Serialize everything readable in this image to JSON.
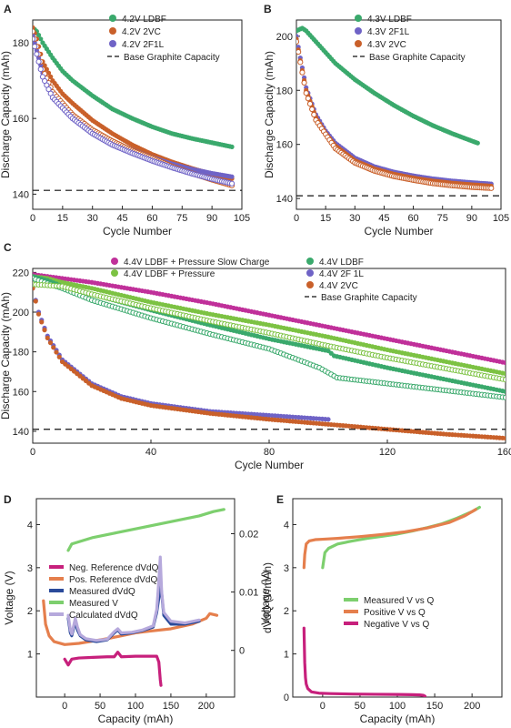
{
  "colors": {
    "green": "#3aa96c",
    "purple": "#6f63c6",
    "orange": "#c9602a",
    "magenta": "#c0309a",
    "lime": "#7cc243",
    "navy": "#2a4a9a",
    "light_green": "#7dcf6e",
    "pos_orange": "#e57f4d",
    "neg_magenta": "#c7207c",
    "lavender": "#b6a9dc"
  },
  "chart_data": [
    {
      "panel": "A",
      "type": "scatter",
      "ylabel": "Discharge Capacity (mAh)",
      "xlabel": "Cycle Number",
      "xlim": [
        0,
        105
      ],
      "ylim": [
        136,
        186
      ],
      "xticks": [
        "0",
        "15",
        "30",
        "45",
        "60",
        "75",
        "90",
        "105"
      ],
      "yticks": [
        "140",
        "160",
        "180"
      ],
      "legend_position": "top-right",
      "series": [
        {
          "name": "4.2V LDBF",
          "color": "#3aa96c",
          "style": "filled",
          "x": [
            0,
            2,
            5,
            10,
            15,
            20,
            30,
            40,
            50,
            60,
            70,
            80,
            90,
            100
          ],
          "y": [
            184,
            183,
            180,
            176,
            172.5,
            170,
            166,
            162.5,
            160,
            157.8,
            156,
            154.7,
            153.6,
            152.5
          ]
        },
        {
          "name": "4.2V 2VC",
          "color": "#c9602a",
          "style": "filled",
          "x": [
            0,
            2,
            5,
            10,
            15,
            20,
            30,
            40,
            50,
            60,
            70,
            80,
            90,
            100
          ],
          "y": [
            184,
            181,
            175,
            170,
            166.5,
            164,
            159.5,
            156,
            153,
            150.5,
            148.5,
            146.8,
            145.3,
            144.1
          ]
        },
        {
          "name": "4.2V 2F1L",
          "color": "#6f63c6",
          "style": "filled",
          "x": [
            0,
            2,
            5,
            10,
            15,
            20,
            30,
            40,
            50,
            60,
            70,
            80,
            90,
            100
          ],
          "y": [
            182,
            178,
            172,
            167,
            163.5,
            161,
            157,
            154,
            151.7,
            149.7,
            148,
            146.6,
            145.5,
            144.6
          ]
        },
        {
          "name": "4.2V 2VC (open)",
          "color": "#c9602a",
          "style": "open",
          "x": [
            0,
            5,
            10,
            20,
            30,
            40,
            50,
            60,
            70,
            80,
            90,
            100
          ],
          "y": [
            183,
            173,
            167,
            161,
            157,
            154,
            151.5,
            149.5,
            147.3,
            145.5,
            143.8,
            142.3
          ]
        },
        {
          "name": "4.2V 2F1L (open)",
          "color": "#6f63c6",
          "style": "open",
          "x": [
            0,
            5,
            10,
            20,
            30,
            40,
            50,
            60,
            70,
            80,
            90,
            100
          ],
          "y": [
            181,
            171,
            165.5,
            160,
            156,
            153,
            150.8,
            148.8,
            147,
            145.4,
            144,
            142.8
          ]
        },
        {
          "name": "Base Graphite Capacity",
          "type": "hline",
          "y": 141
        }
      ]
    },
    {
      "panel": "B",
      "type": "scatter",
      "ylabel": "Discharge Capacity (mAh)",
      "xlabel": "Cycle Number",
      "xlim": [
        0,
        105
      ],
      "ylim": [
        136,
        206
      ],
      "xticks": [
        "0",
        "15",
        "30",
        "45",
        "60",
        "75",
        "90",
        "105"
      ],
      "yticks": [
        "140",
        "160",
        "180",
        "200"
      ],
      "legend_position": "top-right",
      "series": [
        {
          "name": "4.3V LDBF",
          "color": "#3aa96c",
          "style": "filled",
          "x": [
            0,
            3,
            5,
            10,
            15,
            20,
            30,
            40,
            50,
            60,
            70,
            80,
            90,
            93
          ],
          "y": [
            202,
            203,
            202,
            198,
            194,
            190,
            184,
            179,
            174.5,
            170.5,
            167,
            164,
            161.3,
            160.5
          ]
        },
        {
          "name": "4.3V 2F1L",
          "color": "#6f63c6",
          "style": "filled",
          "x": [
            0,
            2,
            5,
            10,
            15,
            20,
            30,
            40,
            50,
            60,
            70,
            80,
            90,
            100
          ],
          "y": [
            200,
            192,
            181,
            171,
            165,
            160.5,
            155,
            151.8,
            149.8,
            148.4,
            147.3,
            146.5,
            145.9,
            145.4
          ]
        },
        {
          "name": "4.3V 2VC",
          "color": "#c9602a",
          "style": "filled",
          "x": [
            0,
            2,
            5,
            10,
            15,
            20,
            30,
            40,
            50,
            60,
            70,
            80,
            90,
            100
          ],
          "y": [
            199,
            191,
            180,
            170,
            164,
            159.5,
            154,
            151,
            149,
            147.6,
            146.5,
            145.7,
            145.1,
            144.6
          ]
        },
        {
          "name": "4.3V 2VC (open)",
          "color": "#c9602a",
          "style": "open",
          "x": [
            0,
            5,
            10,
            20,
            30,
            40,
            50,
            60,
            70,
            80,
            90,
            100
          ],
          "y": [
            198,
            179,
            169,
            158.5,
            153.2,
            150.2,
            148.2,
            146.8,
            145.6,
            144.8,
            144.2,
            143.8
          ]
        },
        {
          "name": "Base Graphite Capacity",
          "type": "hline",
          "y": 141
        }
      ]
    },
    {
      "panel": "C",
      "type": "scatter",
      "ylabel": "Discharge Capacity (mAh)",
      "xlabel": "Cycle Number",
      "xlim": [
        0,
        160
      ],
      "ylim": [
        134,
        222
      ],
      "xticks": [
        "0",
        "40",
        "80",
        "120",
        "160"
      ],
      "yticks": [
        "140",
        "160",
        "180",
        "200",
        "220"
      ],
      "legend_position": "top",
      "series": [
        {
          "name": "4.4V LDBF + Pressure Slow Charge",
          "color": "#c0309a",
          "style": "filled",
          "x": [
            0,
            5,
            10,
            20,
            40,
            60,
            80,
            100,
            120,
            140,
            160
          ],
          "y": [
            219,
            218,
            217,
            215,
            210,
            204.5,
            198.5,
            192.5,
            186.5,
            180.5,
            174.5
          ]
        },
        {
          "name": "4.4V LDBF + Pressure",
          "color": "#7cc243",
          "style": "filled",
          "x": [
            0,
            5,
            10,
            20,
            40,
            60,
            80,
            100,
            120,
            140,
            160
          ],
          "y": [
            218,
            217,
            215,
            212,
            205,
            199,
            193.5,
            187.5,
            181,
            175,
            169
          ]
        },
        {
          "name": "4.4V LDBF",
          "color": "#3aa96c",
          "style": "filled",
          "x": [
            0,
            5,
            10,
            20,
            40,
            60,
            80,
            100,
            102,
            120,
            140,
            160
          ],
          "y": [
            218,
            216,
            213,
            209,
            201,
            193.5,
            186.5,
            180.5,
            178,
            172,
            166,
            160
          ]
        },
        {
          "name": "4.4V 2F 1L",
          "color": "#6f63c6",
          "style": "filled",
          "x": [
            0,
            2,
            5,
            10,
            20,
            30,
            40,
            60,
            80,
            100
          ],
          "y": [
            212,
            200,
            188,
            176,
            164,
            157.5,
            154,
            150,
            148,
            146
          ]
        },
        {
          "name": "4.4V 2VC",
          "color": "#c9602a",
          "style": "filled",
          "x": [
            0,
            2,
            5,
            10,
            20,
            30,
            40,
            60,
            80,
            100,
            120,
            140,
            160
          ],
          "y": [
            212,
            199,
            187,
            175,
            163,
            156.5,
            153,
            149,
            146,
            143.5,
            141,
            138.5,
            136.5
          ]
        },
        {
          "name": "4.4V LDBF (open)",
          "color": "#3aa96c",
          "style": "open",
          "x": [
            0,
            10,
            20,
            40,
            60,
            80,
            97,
            103,
            120,
            140,
            160
          ],
          "y": [
            217,
            212,
            206,
            197,
            189,
            181.5,
            172,
            167,
            164,
            160.5,
            157
          ]
        },
        {
          "name": "4.4V LDBF + Pressure (open)",
          "color": "#7cc243",
          "style": "open",
          "x": [
            0,
            10,
            20,
            40,
            60,
            80,
            100,
            120,
            140,
            160
          ],
          "y": [
            214,
            213,
            209,
            202,
            195.5,
            189.5,
            183,
            177,
            171.5,
            166
          ]
        },
        {
          "name": "Base Graphite Capacity",
          "type": "hline",
          "y": 141
        }
      ]
    },
    {
      "panel": "D",
      "type": "line",
      "ylabel": "Voltage (V)",
      "y2label": "dVdQ (V/mAh)",
      "xlabel": "Capacity (mAh)",
      "xlim": [
        -40,
        240
      ],
      "ylim": [
        0,
        4.6
      ],
      "y2lim": [
        -0.008,
        0.026
      ],
      "xticks": [
        "0",
        "50",
        "100",
        "150",
        "200"
      ],
      "yticks": [
        "1",
        "2",
        "3",
        "4"
      ],
      "y2ticks": [
        "0",
        "0.01",
        "0.02"
      ],
      "legend_position": "middle-left",
      "series": [
        {
          "name": "Neg. Reference dVdQ",
          "color": "#c7207c",
          "axis": "y2",
          "x": [
            0,
            5,
            10,
            20,
            40,
            60,
            70,
            75,
            80,
            100,
            120,
            130,
            133,
            135,
            136
          ],
          "y": [
            -0.0015,
            -0.0025,
            -0.0015,
            -0.0013,
            -0.0012,
            -0.0011,
            -0.0011,
            -0.0003,
            -0.0011,
            -0.001,
            -0.001,
            -0.001,
            -0.002,
            -0.005,
            -0.006
          ]
        },
        {
          "name": "Pos. Reference dVdQ",
          "color": "#e57f4d",
          "axis": "y2",
          "x": [
            -30,
            -27,
            -22,
            -15,
            0,
            20,
            40,
            60,
            80,
            100,
            120,
            150,
            180,
            200,
            205,
            215
          ],
          "y": [
            0.0085,
            0.0045,
            0.0025,
            0.0015,
            0.001,
            0.0012,
            0.0016,
            0.002,
            0.0025,
            0.003,
            0.0033,
            0.0037,
            0.0045,
            0.0055,
            0.0063,
            0.006
          ]
        },
        {
          "name": "Measured dVdQ",
          "color": "#2a4a9a",
          "axis": "y2",
          "x": [
            5,
            8,
            10,
            15,
            18,
            22,
            30,
            45,
            60,
            70,
            75,
            80,
            95,
            110,
            125,
            130,
            133,
            136,
            140,
            150,
            170,
            190
          ],
          "y": [
            0.0055,
            0.003,
            0.0025,
            0.005,
            0.0035,
            0.0025,
            0.0018,
            0.0015,
            0.0018,
            0.003,
            0.0035,
            0.0028,
            0.003,
            0.0034,
            0.004,
            0.0065,
            0.009,
            0.011,
            0.006,
            0.0045,
            0.0045,
            0.005
          ]
        },
        {
          "name": "Measured V",
          "color": "#7dcf6e",
          "axis": "y",
          "x": [
            5,
            10,
            20,
            40,
            70,
            100,
            130,
            160,
            190,
            210,
            225
          ],
          "y": [
            3.4,
            3.55,
            3.6,
            3.7,
            3.8,
            3.9,
            4.0,
            4.1,
            4.2,
            4.3,
            4.35
          ]
        },
        {
          "name": "Calculated dVdQ",
          "color": "#b6a9dc",
          "axis": "y2",
          "x": [
            5,
            8,
            10,
            15,
            18,
            22,
            30,
            45,
            60,
            70,
            75,
            80,
            95,
            110,
            125,
            130,
            133,
            135,
            137,
            140,
            150,
            170,
            190
          ],
          "y": [
            0.006,
            0.0035,
            0.0028,
            0.0055,
            0.004,
            0.0027,
            0.002,
            0.0017,
            0.0019,
            0.0032,
            0.0037,
            0.003,
            0.0031,
            0.0035,
            0.0042,
            0.007,
            0.012,
            0.016,
            0.01,
            0.0065,
            0.005,
            0.0047,
            0.0052
          ]
        }
      ]
    },
    {
      "panel": "E",
      "type": "line",
      "ylabel": "Voltage (V)",
      "xlabel": "Capacity (mAh)",
      "xlim": [
        -40,
        240
      ],
      "ylim": [
        0,
        4.6
      ],
      "xticks": [
        "0",
        "50",
        "100",
        "150",
        "200"
      ],
      "yticks": [
        "0",
        "1",
        "2",
        "3",
        "4"
      ],
      "legend_position": "middle-right",
      "series": [
        {
          "name": "Measured V vs Q",
          "color": "#7dcf6e",
          "x": [
            0,
            3,
            8,
            20,
            40,
            60,
            80,
            100,
            120,
            140,
            160,
            180,
            200,
            210
          ],
          "y": [
            3.0,
            3.35,
            3.45,
            3.55,
            3.62,
            3.68,
            3.73,
            3.78,
            3.85,
            3.93,
            4.02,
            4.15,
            4.3,
            4.4
          ]
        },
        {
          "name": "Positive V vs Q",
          "color": "#e57f4d",
          "x": [
            -25,
            -24,
            -22,
            -18,
            -10,
            0,
            20,
            50,
            80,
            110,
            140,
            170,
            190,
            205
          ],
          "y": [
            3.0,
            3.3,
            3.55,
            3.62,
            3.65,
            3.66,
            3.68,
            3.72,
            3.77,
            3.83,
            3.92,
            4.05,
            4.2,
            4.35
          ]
        },
        {
          "name": "Negative V vs Q",
          "color": "#c7207c",
          "x": [
            -25,
            -24.5,
            -24,
            -23,
            -22,
            -20,
            -15,
            -5,
            10,
            40,
            70,
            100,
            120,
            130,
            135,
            137
          ],
          "y": [
            1.6,
            1.2,
            0.8,
            0.45,
            0.3,
            0.2,
            0.12,
            0.09,
            0.08,
            0.07,
            0.065,
            0.06,
            0.055,
            0.05,
            0.04,
            0.02
          ]
        }
      ]
    }
  ]
}
